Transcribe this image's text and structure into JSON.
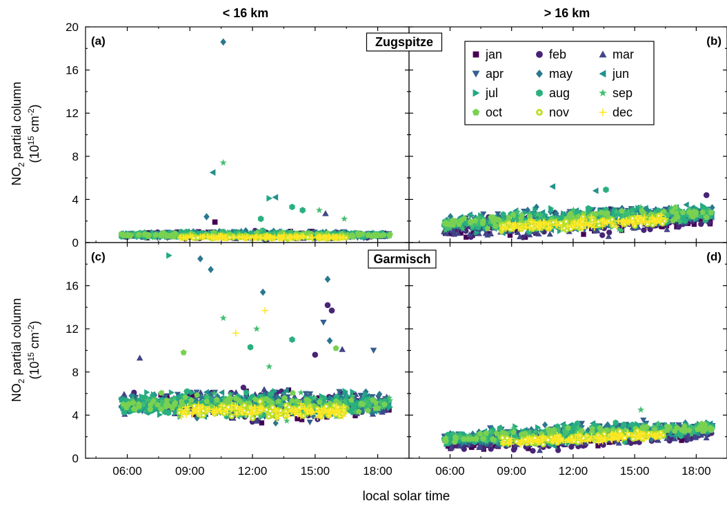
{
  "figure": {
    "xlabel": "local solar time",
    "ylabel_top": {
      "pre": "NO",
      "sub": "2",
      "post": " partial column",
      "line2_pre": "(10",
      "sup": "15",
      "line2_mid": " cm",
      "sup2": "-2",
      "line2_post": ")"
    },
    "ylabel_bottom": {
      "pre": "NO",
      "sub": "2",
      "post": " partial column",
      "line2_pre": "(10",
      "sup": "15",
      "line2_mid": " cm",
      "sup2": "-2",
      "line2_post": ")"
    },
    "col_titles": [
      "< 16 km",
      "> 16 km"
    ],
    "panel_labels": [
      "(a)",
      "(b)",
      "(c)",
      "(d)"
    ],
    "station_labels": [
      "Zugspitze",
      "Garmisch"
    ],
    "x_ticks": [
      "06:00",
      "09:00",
      "12:00",
      "15:00",
      "18:00"
    ],
    "x_tick_values": [
      6,
      9,
      12,
      15,
      18
    ],
    "y_ticks_top": [
      "0",
      "4",
      "8",
      "12",
      "16",
      "20"
    ],
    "y_ticks_bottom": [
      "0",
      "4",
      "8",
      "12",
      "16"
    ],
    "legend": [
      {
        "label": "jan",
        "marker": "square",
        "color": "#440154"
      },
      {
        "label": "feb",
        "marker": "circle",
        "color": "#482475"
      },
      {
        "label": "mar",
        "marker": "triangle-up",
        "color": "#414487"
      },
      {
        "label": "apr",
        "marker": "triangle-down",
        "color": "#355f8d"
      },
      {
        "label": "may",
        "marker": "diamond",
        "color": "#2a788e"
      },
      {
        "label": "jun",
        "marker": "triangle-left",
        "color": "#21918c"
      },
      {
        "label": "jul",
        "marker": "triangle-right",
        "color": "#22a884"
      },
      {
        "label": "aug",
        "marker": "hexagon",
        "color": "#2ab07f"
      },
      {
        "label": "sep",
        "marker": "star",
        "color": "#44bf70"
      },
      {
        "label": "oct",
        "marker": "pentagon",
        "color": "#7ad151"
      },
      {
        "label": "nov",
        "marker": "circle-dot",
        "color": "#bddf26"
      },
      {
        "label": "dec",
        "marker": "plus",
        "color": "#fde725"
      }
    ]
  },
  "chart_data": [
    {
      "panel": "(a)",
      "station": "Zugspitze",
      "altitude": "< 16 km",
      "type": "scatter",
      "xlim": [
        4,
        19.5
      ],
      "ylim": [
        0,
        20
      ],
      "cloud": {
        "x_range": [
          5.7,
          18.6
        ],
        "y_center": 0.7,
        "y_spread": 0.5
      },
      "outliers": [
        {
          "month": "may",
          "x": 10.6,
          "y": 18.6
        },
        {
          "month": "jun",
          "x": 10.1,
          "y": 6.5
        },
        {
          "month": "sep",
          "x": 10.6,
          "y": 7.4
        },
        {
          "month": "jul",
          "x": 12.8,
          "y": 4.1
        },
        {
          "month": "jun",
          "x": 13.1,
          "y": 4.2
        },
        {
          "month": "aug",
          "x": 13.9,
          "y": 3.3
        },
        {
          "month": "aug",
          "x": 14.4,
          "y": 3.0
        },
        {
          "month": "sep",
          "x": 15.2,
          "y": 3.0
        },
        {
          "month": "mar",
          "x": 15.5,
          "y": 2.7
        },
        {
          "month": "sep",
          "x": 16.4,
          "y": 2.2
        },
        {
          "month": "aug",
          "x": 12.4,
          "y": 2.2
        },
        {
          "month": "jan",
          "x": 10.2,
          "y": 1.9
        },
        {
          "month": "may",
          "x": 9.8,
          "y": 2.4
        }
      ]
    },
    {
      "panel": "(b)",
      "station": "Zugspitze",
      "altitude": "> 16 km",
      "type": "scatter",
      "xlim": [
        4,
        19.5
      ],
      "ylim": [
        0,
        20
      ],
      "cloud": {
        "x_range": [
          5.7,
          18.8
        ],
        "y_center": 2.2,
        "y_spread": 1.6
      },
      "outliers": [
        {
          "month": "jun",
          "x": 11.0,
          "y": 5.2
        },
        {
          "month": "aug",
          "x": 13.6,
          "y": 4.9
        },
        {
          "month": "jun",
          "x": 13.1,
          "y": 4.8
        },
        {
          "month": "feb",
          "x": 18.5,
          "y": 4.4
        }
      ]
    },
    {
      "panel": "(c)",
      "station": "Garmisch",
      "altitude": "< 16 km",
      "type": "scatter",
      "xlim": [
        4,
        19.5
      ],
      "ylim": [
        0,
        20
      ],
      "cloud": {
        "x_range": [
          5.7,
          18.6
        ],
        "y_center": 5.0,
        "y_spread": 2.0
      },
      "outliers": [
        {
          "month": "jul",
          "x": 8.0,
          "y": 18.8
        },
        {
          "month": "may",
          "x": 9.5,
          "y": 18.5
        },
        {
          "month": "may",
          "x": 10.0,
          "y": 17.5
        },
        {
          "month": "may",
          "x": 15.6,
          "y": 16.6
        },
        {
          "month": "may",
          "x": 12.5,
          "y": 15.4
        },
        {
          "month": "feb",
          "x": 15.6,
          "y": 14.2
        },
        {
          "month": "feb",
          "x": 15.8,
          "y": 13.7
        },
        {
          "month": "dec",
          "x": 12.6,
          "y": 13.7
        },
        {
          "month": "sep",
          "x": 10.6,
          "y": 13.0
        },
        {
          "month": "sep",
          "x": 12.2,
          "y": 12.0
        },
        {
          "month": "dec",
          "x": 11.2,
          "y": 11.6
        },
        {
          "month": "apr",
          "x": 15.4,
          "y": 12.6
        },
        {
          "month": "aug",
          "x": 13.9,
          "y": 11.0
        },
        {
          "month": "oct",
          "x": 16.0,
          "y": 10.2
        },
        {
          "month": "mar",
          "x": 16.3,
          "y": 10.1
        },
        {
          "month": "apr",
          "x": 17.8,
          "y": 10.0
        },
        {
          "month": "may",
          "x": 15.7,
          "y": 10.9
        },
        {
          "month": "feb",
          "x": 15.0,
          "y": 9.6
        },
        {
          "month": "mar",
          "x": 6.6,
          "y": 9.3
        },
        {
          "month": "oct",
          "x": 8.7,
          "y": 9.8
        },
        {
          "month": "sep",
          "x": 12.8,
          "y": 8.5
        },
        {
          "month": "aug",
          "x": 11.9,
          "y": 10.3
        }
      ]
    },
    {
      "panel": "(d)",
      "station": "Garmisch",
      "altitude": "> 16 km",
      "type": "scatter",
      "xlim": [
        4,
        19.5
      ],
      "ylim": [
        0,
        20
      ],
      "cloud": {
        "x_range": [
          5.7,
          18.8
        ],
        "y_center": 2.3,
        "y_spread": 1.3
      },
      "outliers": [
        {
          "month": "sep",
          "x": 15.3,
          "y": 4.5
        }
      ]
    }
  ]
}
